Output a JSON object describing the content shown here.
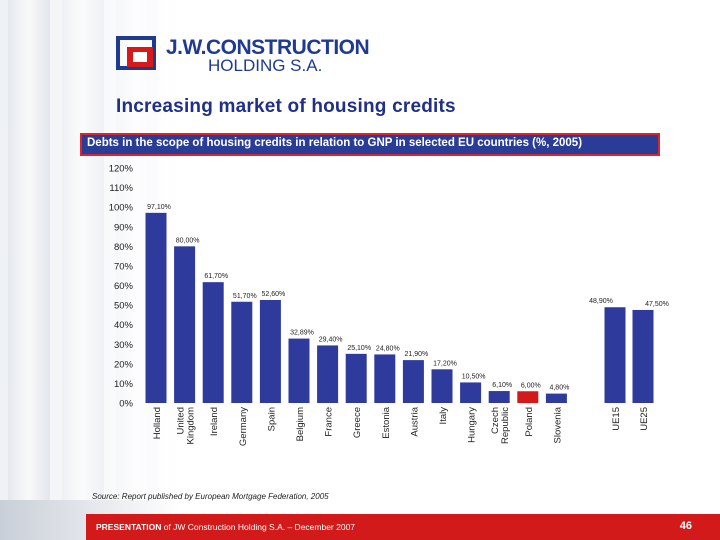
{
  "logo": {
    "name": "J.W.CONSTRUCTION",
    "sub": "HOLDING S.A."
  },
  "title": "Increasing market of housing credits",
  "subtitle": "Debts in the scope of housing credits in relation to GNP in selected EU countries (%, 2005)",
  "source": "Source: Report published by European Mortgage Federation, 2005",
  "footer": {
    "prefix": "PRESENTATION",
    "text": " of JW Construction Holding S.A. – December 2007",
    "page": "46"
  },
  "colors": {
    "bar": "#2e3b9c",
    "highlight": "#d21a1a",
    "brand": "#1f3a93",
    "accent": "#d21a1a"
  },
  "chart_data": {
    "type": "bar",
    "title": "Debts in the scope of housing credits in relation to GNP in selected EU countries (%, 2005)",
    "xlabel": "",
    "ylabel": "",
    "ylim": [
      0,
      120
    ],
    "yticks": [
      "0%",
      "10%",
      "20%",
      "30%",
      "40%",
      "50%",
      "60%",
      "70%",
      "80%",
      "90%",
      "100%",
      "110%",
      "120%"
    ],
    "categories": [
      "Holland",
      "United Kingdom",
      "Ireland",
      "Germany",
      "Spain",
      "Belgium",
      "France",
      "Greece",
      "Estonia",
      "Austria",
      "Italy",
      "Hungary",
      "Czech Republic",
      "Poland",
      "Slovenia",
      "UE15",
      "UE25"
    ],
    "values": [
      97.1,
      80.0,
      61.7,
      51.7,
      52.6,
      32.89,
      29.4,
      25.1,
      24.8,
      21.9,
      17.2,
      10.5,
      6.1,
      6.0,
      4.8,
      48.9,
      47.5
    ],
    "data_labels": [
      "97,10%",
      "80,00%",
      "61,70%",
      "51,70%",
      "52,60%",
      "32,89%",
      "29,40%",
      "25,10%",
      "24,80%",
      "21,90%",
      "17,20%",
      "10,50%",
      "6,10%",
      "6,00%",
      "4,80%",
      "48,90%",
      "47,50%"
    ],
    "highlight": "Poland",
    "grid": false,
    "legend": "none"
  }
}
